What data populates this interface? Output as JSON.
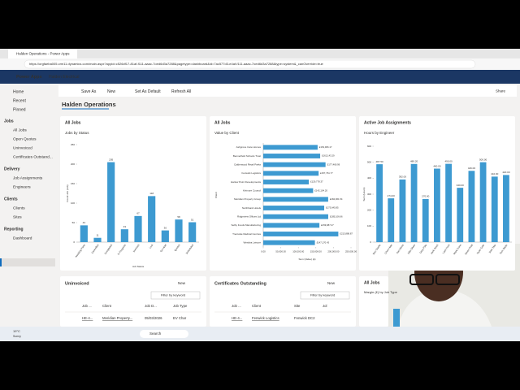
{
  "browser": {
    "tab": "Halden Operations - Power Apps",
    "url": "https://orgfaeba005.crm11.dynamics.com/main.aspx?appid=c526df17-81af-f111-aaac-7oed6d3a7288&pagetype=dashboard&id=7ac577d3-e4af-f111-aaac-7oed6d3a7288&type=system&_canOverride=true"
  },
  "app": {
    "name": "Power Apps",
    "env": "Halden Electrical"
  },
  "nav": {
    "top": [
      "Home",
      "Recent",
      "Pinned"
    ],
    "sections": [
      {
        "title": "Jobs",
        "items": [
          "All Jobs",
          "Open Quotes",
          "Uninvoiced",
          "Certificates Outstand..."
        ]
      },
      {
        "title": "Delivery",
        "items": [
          "Job Assignments",
          "Engineers"
        ]
      },
      {
        "title": "Clients",
        "items": [
          "Clients",
          "Sites"
        ]
      },
      {
        "title": "Reporting",
        "items": [
          "Dashboard"
        ]
      }
    ]
  },
  "toolbar": [
    "Save As",
    "New",
    "Set As Default",
    "Refresh All"
  ],
  "share": "Share",
  "dashboard_title": "Halden Operations",
  "charts": [
    {
      "type": "bar",
      "view": "All Jobs",
      "title": "Jobs by Status",
      "x_label": "Job Status",
      "y_label": "Count:Job (Job)",
      "categories": [
        "Awaiting Parts",
        "Cancelled",
        "Completed",
        "In Progress",
        "Invoiced",
        "Lost",
        "On Hold",
        "Quoted",
        "Scheduled"
      ],
      "values": [
        43,
        11,
        205,
        33,
        67,
        118,
        30,
        58,
        51
      ],
      "ylim": [
        0,
        250
      ],
      "yticks": [
        0,
        50,
        100,
        150,
        200,
        250
      ],
      "color": "#3d9ad1"
    },
    {
      "type": "hbar",
      "view": "All Jobs",
      "title": "Value by Client",
      "x_label": "Sum (Value) (£)",
      "y_label": "Client",
      "categories": [
        "Ashgrove Care Homes",
        "Bennerfield Schools Trust",
        "Calderwood Retail Parks",
        "Fenwick Logistics",
        "Harlow Point Developments",
        "Kelmore Council",
        "Meridian Property Group",
        "Northbank Hotels",
        "Ridgeview Offices Ltd",
        "Selby Foods Manufacturing",
        "Trentvale Medical Centres",
        "Westlea Leisure"
      ],
      "values": [
        154906.17,
        162143.29,
        177469.99,
        157761.77,
        129778.37,
        142104.2,
        184961.54,
        173645.85,
        185106.66,
        159987.27,
        213888.87,
        147170.43
      ],
      "value_labels": [
        "£154,906.17",
        "£162,143.29",
        "£177,469.99",
        "£157,761.77",
        "£129,778.37",
        "£142,104.20",
        "£184,961.54",
        "£173,645.85",
        "£185,106.66",
        "£159,987.27",
        "£213,888.87",
        "£147,170.43"
      ],
      "xlim": [
        0,
        250000
      ],
      "xticks": [
        {
          "value": 0,
          "label": "0.00"
        },
        {
          "value": 50000,
          "label": "50,000.00"
        },
        {
          "value": 100000,
          "label": "100,000.00"
        },
        {
          "value": 150000,
          "label": "150,000.00"
        },
        {
          "value": 200000,
          "label": "200,000.00"
        },
        {
          "value": 250000,
          "label": "250,000.00"
        }
      ],
      "color": "#3d9ad1"
    },
    {
      "type": "bar",
      "view": "Active Job Assignments",
      "title": "Hours by Engineer",
      "y_label": "Sum (Hours)",
      "categories": [
        "Ben Clarke",
        "Chris Hale",
        "Dan Moss",
        "Ellie Shaw",
        "Gary Pike",
        "Jack Reed",
        "Liam Ford",
        "Mark Dunn",
        "Owen Pratt",
        "Ryan Cole",
        "Sam Tate",
        "Tom Wade"
      ],
      "values": [
        487.5,
        274,
        392,
        489.2,
        270,
        460,
        490,
        340,
        446,
        500,
        410,
        420
      ],
      "value_labels": [
        "487.50",
        "274.00",
        "392.00",
        "489.20",
        "270.00",
        "460.00",
        "490.00",
        "340.00",
        "446.00",
        "500.00",
        "410.00",
        "420.00"
      ],
      "ylim": [
        0,
        600
      ],
      "yticks": [
        0,
        100,
        200,
        300,
        400,
        500,
        600
      ],
      "color": "#3d9ad1"
    }
  ],
  "margin_card": {
    "view": "All Jobs",
    "title": "Margin (£) by Job Type"
  },
  "lists": [
    {
      "title": "Uninvoiced",
      "new": "New",
      "filter": "Filter by keyword",
      "columns": [
        "Job ...",
        "Client",
        "Job D...",
        "Job Type"
      ],
      "row": [
        "HE-4...",
        "Meridian Property...",
        "05/03/2026",
        "EV Char"
      ]
    },
    {
      "title": "Certificates Outstanding",
      "new": "New",
      "filter": "Filter by keyword",
      "columns": [
        "Job ...",
        "Client",
        "Site",
        "Jol"
      ],
      "row": [
        "HE-4...",
        "Fenwick Logistics",
        "Fenwick DC2"
      ]
    }
  ],
  "taskbar": {
    "weather": "19°C",
    "weather_sub": "Sunny",
    "search": "Search"
  }
}
